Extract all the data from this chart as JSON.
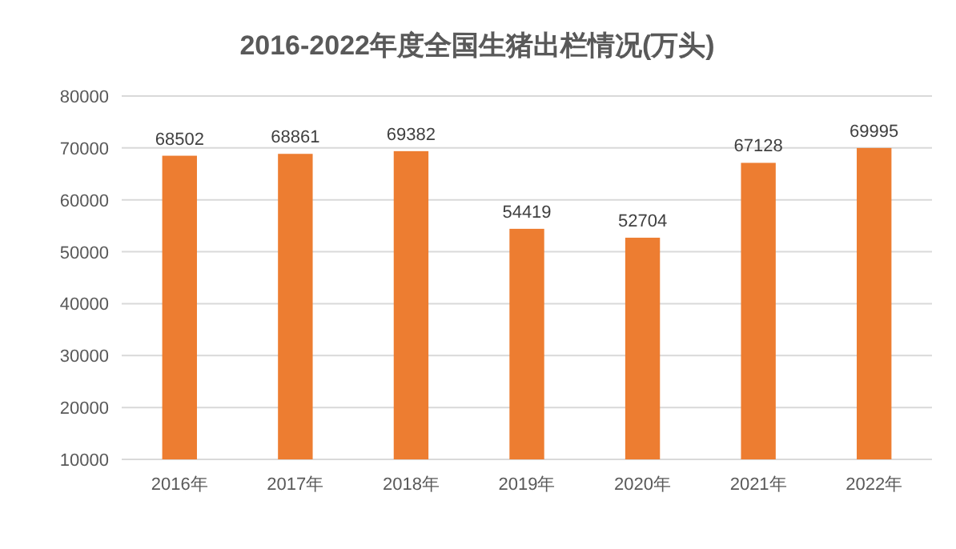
{
  "chart_data": {
    "type": "bar",
    "title": "2016-2022年度全国生猪出栏情况(万头)",
    "categories": [
      "2016年",
      "2017年",
      "2018年",
      "2019年",
      "2020年",
      "2021年",
      "2022年"
    ],
    "values": [
      68502,
      68861,
      69382,
      54419,
      52704,
      67128,
      69995
    ],
    "color": "#ed7d31",
    "ylim": [
      10000,
      80000
    ],
    "yticks": [
      10000,
      20000,
      30000,
      40000,
      50000,
      60000,
      70000,
      80000
    ],
    "grid": "y",
    "data_labels": true
  }
}
